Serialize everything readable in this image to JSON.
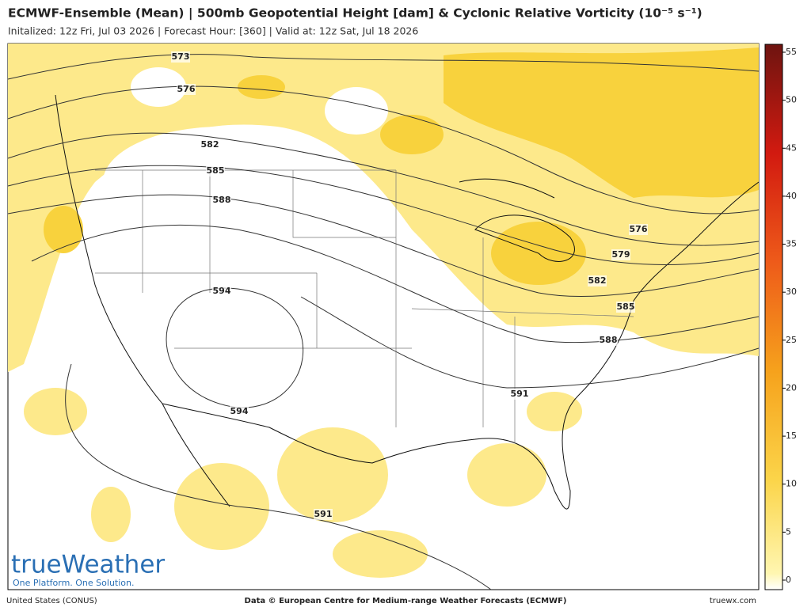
{
  "header": {
    "title": "ECMWF-Ensemble (Mean) | 500mb Geopotential Height [dam] & Cyclonic Relative Vorticity (10⁻⁵ s⁻¹)",
    "subtitle": "Initalized: 12z Fri, Jul 03 2026  |  Forecast Hour: [360]  |  Valid at: 12z Sat, Jul 18 2026"
  },
  "contour_labels": [
    "573",
    "576",
    "582",
    "585",
    "588",
    "594",
    "594",
    "576",
    "579",
    "582",
    "585",
    "588",
    "591",
    "591"
  ],
  "colorbar": {
    "ticks": [
      0,
      5,
      10,
      15,
      20,
      25,
      30,
      35,
      40,
      45,
      50,
      55
    ]
  },
  "logo": {
    "name": "trueWeather",
    "tagline": "One Platform. One Solution."
  },
  "footer": {
    "region": "United States (CONUS)",
    "credit": "Data © European Centre for Medium-range Weather Forecasts (ECMWF)",
    "site": "truewx.com"
  }
}
